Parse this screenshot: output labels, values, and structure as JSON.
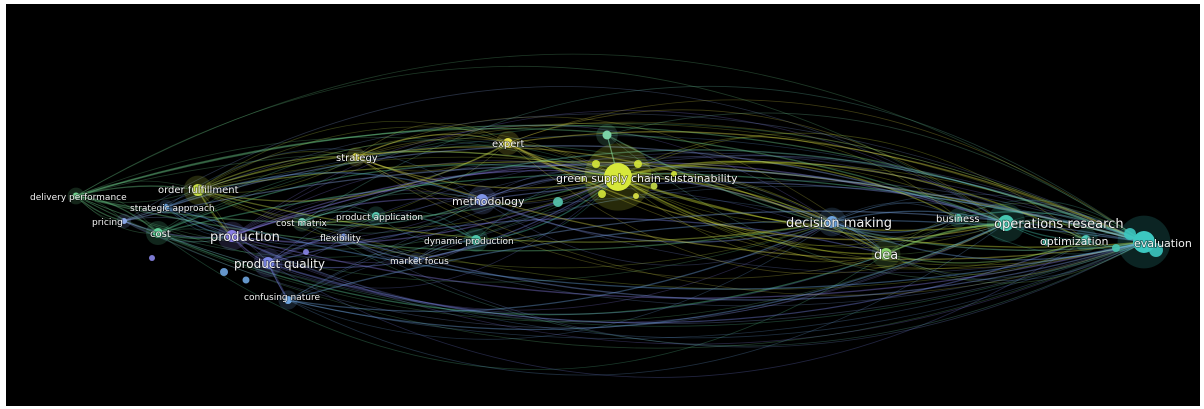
{
  "network": {
    "palette": {
      "background": "#000000",
      "purple": "#8a86e8",
      "blue": "#6fa6e0",
      "teal": "#3cc7b4",
      "green": "#5fd39a",
      "yellow": "#d6e83a",
      "label": "#f2f2f2"
    },
    "nodes": [
      {
        "id": "delivery",
        "label": "delivery performance",
        "color": "#6fcf8c"
      },
      {
        "id": "order",
        "label": "order fulfillment",
        "color": "#c9e04a"
      },
      {
        "id": "strategic_approach",
        "label": "strategic approach",
        "color": "#6aa8e6"
      },
      {
        "id": "pricing",
        "label": "pricing",
        "color": "#8aa7e6"
      },
      {
        "id": "cost",
        "label": "cost",
        "color": "#5fd39a"
      },
      {
        "id": "production",
        "label": "production",
        "color": "#8a7fe6"
      },
      {
        "id": "product_quality",
        "label": "product quality",
        "color": "#7a86e8"
      },
      {
        "id": "confusing_nature",
        "label": "confusing nature",
        "color": "#6fa6e0"
      },
      {
        "id": "cost_matrix",
        "label": "cost matrix",
        "color": "#6fcfb6"
      },
      {
        "id": "product_application",
        "label": "product application",
        "color": "#58c9b0"
      },
      {
        "id": "flexibility",
        "label": "flexibility",
        "color": "#7d9ae6"
      },
      {
        "id": "market_focus",
        "label": "market focus",
        "color": "#7da4e0"
      },
      {
        "id": "dynamic_production",
        "label": "dynamic production",
        "color": "#4fc7ac"
      },
      {
        "id": "methodology",
        "label": "methodology",
        "color": "#8095e6"
      },
      {
        "id": "strategy",
        "label": "strategy",
        "color": "#d8d84a"
      },
      {
        "id": "expert",
        "label": "expert",
        "color": "#e8e34a"
      },
      {
        "id": "top_node",
        "label": "",
        "color": "#7ad3a6"
      },
      {
        "id": "sustainability",
        "label": "green supply chain sustainability",
        "color": "#d6e83a"
      },
      {
        "id": "decision_making",
        "label": "decision making",
        "color": "#6fa6e0"
      },
      {
        "id": "dea",
        "label": "dea",
        "color": "#8ad46a"
      },
      {
        "id": "business",
        "label": "business",
        "color": "#58c9b0"
      },
      {
        "id": "operations_research",
        "label": "operations research",
        "color": "#46c6b0"
      },
      {
        "id": "optimization",
        "label": "optimization",
        "color": "#4fc9b8"
      },
      {
        "id": "evaluation",
        "label": "evaluation",
        "color": "#3cc7c0"
      }
    ]
  }
}
